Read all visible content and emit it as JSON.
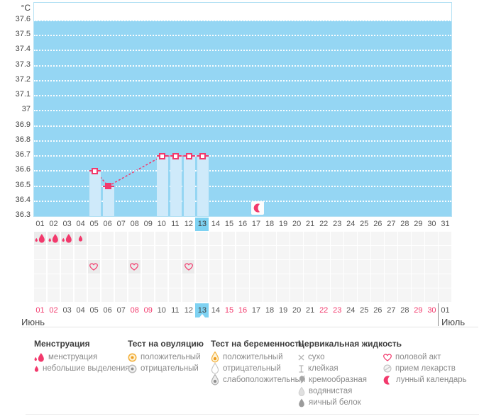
{
  "colors": {
    "chart_background": "#95d6f3",
    "bar_fill": "#cfeafa",
    "accent_pink": "#f2396c",
    "selected_day_blue": "#7ed2f2",
    "weekend_text": "#f2396c",
    "weekday_text": "#555555",
    "test_positive_orange": "#f0a830"
  },
  "chart_data": {
    "type": "line",
    "ylabel": "°C",
    "ylim": [
      36.3,
      37.7
    ],
    "y_ticks": [
      "37.6",
      "37.5",
      "37.4",
      "37.3",
      "37.2",
      "37.1",
      "37",
      "36.9",
      "36.8",
      "36.7",
      "36.6",
      "36.5",
      "36.4",
      "36.3"
    ],
    "x": [
      "01",
      "02",
      "03",
      "04",
      "05",
      "06",
      "07",
      "08",
      "09",
      "10",
      "11",
      "12",
      "13",
      "14",
      "15",
      "16",
      "17",
      "18",
      "19",
      "20",
      "21",
      "22",
      "23",
      "24",
      "25",
      "26",
      "27",
      "28",
      "29",
      "30",
      "31"
    ],
    "series": [
      {
        "name": "basal-temperature",
        "points": [
          {
            "day": 5,
            "temp": 36.6,
            "marker": "open"
          },
          {
            "day": 6,
            "temp": 36.5,
            "marker": "filled"
          },
          {
            "day": 10,
            "temp": 36.7,
            "marker": "open"
          },
          {
            "day": 11,
            "temp": 36.7,
            "marker": "open"
          },
          {
            "day": 12,
            "temp": 36.7,
            "marker": "open"
          },
          {
            "day": 13,
            "temp": 36.7,
            "marker": "open"
          }
        ]
      }
    ],
    "line_segments": [
      {
        "from": 5,
        "to": 6,
        "style": "dashed"
      },
      {
        "from": 6,
        "to": 10,
        "style": "dashed"
      },
      {
        "from": 10,
        "to": 13,
        "style": "solid"
      }
    ],
    "grid": "dotted-white-horizontal",
    "legend_position": "bottom",
    "current_cycle_day": 13,
    "lunar_calendar_day": 17,
    "events": {
      "menstruation_days": [
        1,
        2,
        3
      ],
      "spotting_days": [
        4
      ],
      "intercourse_days": [
        5,
        8,
        12
      ]
    }
  },
  "dates": {
    "month_left": "Июнь",
    "month_right": "Июль",
    "days": [
      "01",
      "02",
      "03",
      "04",
      "05",
      "06",
      "07",
      "08",
      "09",
      "10",
      "11",
      "12",
      "13",
      "14",
      "15",
      "16",
      "17",
      "18",
      "19",
      "20",
      "21",
      "22",
      "23",
      "24",
      "25",
      "26",
      "27",
      "28",
      "29",
      "30",
      "01"
    ],
    "weekend_indices": [
      0,
      1,
      7,
      8,
      14,
      15,
      21,
      22,
      28,
      29
    ],
    "selected_index": 12
  },
  "legend": {
    "groups": [
      {
        "title": "Менструация",
        "items": [
          {
            "icon": "drops-large",
            "label": "менструация"
          },
          {
            "icon": "drop-small",
            "label": "небольшие выделения"
          }
        ]
      },
      {
        "title": "Тест на овуляцию",
        "items": [
          {
            "icon": "test-circle-positive",
            "label": "положительный"
          },
          {
            "icon": "test-circle-negative",
            "label": "отрицательный"
          }
        ]
      },
      {
        "title": "Тест на беременность",
        "items": [
          {
            "icon": "test-drop-positive",
            "label": "положительный"
          },
          {
            "icon": "test-drop-negative",
            "label": "отрицательный"
          },
          {
            "icon": "test-drop-weak",
            "label": "слабоположительный"
          }
        ]
      },
      {
        "title": "Цервикальная жидкость",
        "items": [
          {
            "icon": "dry-cross",
            "label": "сухо"
          },
          {
            "icon": "sticky",
            "label": "клейкая"
          },
          {
            "icon": "creamy",
            "label": "кремообразная"
          },
          {
            "icon": "watery-drop",
            "label": "водянистая"
          },
          {
            "icon": "eggwhite-drop",
            "label": "яичный белок"
          }
        ]
      },
      {
        "title": "",
        "items": [
          {
            "icon": "heart",
            "label": "половой акт"
          },
          {
            "icon": "pill",
            "label": "прием лекарств"
          },
          {
            "icon": "crescent",
            "label": "лунный календарь"
          }
        ]
      }
    ]
  }
}
